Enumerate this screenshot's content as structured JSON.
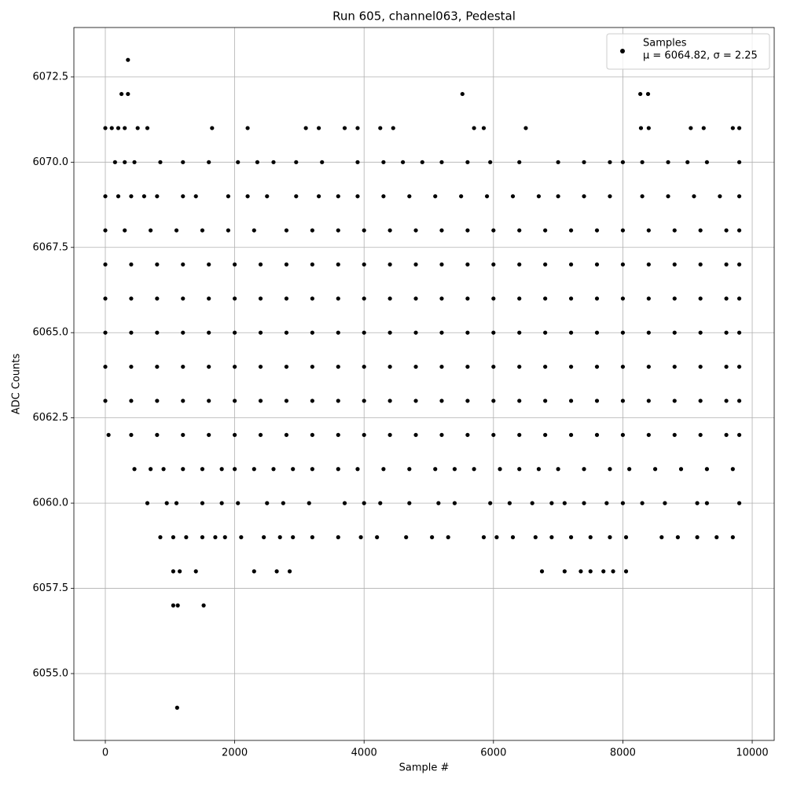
{
  "chart_data": {
    "type": "scatter",
    "title": "Run 605, channel063, Pedestal",
    "x_label": "Sample #",
    "y_label": "ADC Counts",
    "legend_position": "upper right",
    "legend_note": "μ = 6064.82, σ = 2.25",
    "grid": true,
    "xlim": [
      -486,
      10340
    ],
    "ylim": [
      6053.04,
      6073.95
    ],
    "xticks": [
      0,
      2000,
      4000,
      6000,
      8000,
      10000
    ],
    "yticks": [
      {
        "value": 6055,
        "label": "6055.0"
      },
      6057.5,
      {
        "value": 6060,
        "label": "6060.0"
      },
      6062.5,
      {
        "value": 6065,
        "label": "6065.0"
      },
      6067.5,
      {
        "value": 6070,
        "label": "6070.0"
      },
      6072.5
    ],
    "series": [
      {
        "name": "Samples",
        "color": "#000000",
        "x": [
          350,
          250,
          350,
          5520,
          8270,
          8390,
          0,
          100,
          200,
          300,
          500,
          650,
          1650,
          2200,
          3100,
          3300,
          3700,
          3900,
          4250,
          4450,
          5700,
          5850,
          6500,
          9050,
          9250,
          9700,
          9800,
          8280,
          8400,
          150,
          300,
          450,
          850,
          1200,
          1600,
          2050,
          2350,
          2600,
          2950,
          3350,
          3900,
          4300,
          4600,
          4900,
          5200,
          5600,
          5950,
          6400,
          7000,
          7400,
          7800,
          8000,
          8300,
          8700,
          9000,
          9300,
          9800,
          0,
          200,
          400,
          600,
          800,
          1200,
          1400,
          1900,
          2200,
          2500,
          2950,
          3300,
          3600,
          3900,
          4300,
          4700,
          5100,
          5500,
          5900,
          6300,
          6700,
          7000,
          7400,
          7800,
          8300,
          8700,
          9100,
          9500,
          9800,
          0,
          300,
          700,
          1100,
          1500,
          1900,
          2300,
          2800,
          3200,
          3600,
          4000,
          4400,
          4800,
          5200,
          5600,
          6000,
          6400,
          6800,
          7200,
          7600,
          8000,
          8400,
          8800,
          9200,
          9600,
          9800,
          0,
          400,
          800,
          1200,
          1600,
          2000,
          2400,
          2800,
          3200,
          3600,
          4000,
          4400,
          4800,
          5200,
          5600,
          6000,
          6400,
          6800,
          7200,
          7600,
          8000,
          8400,
          8800,
          9200,
          9600,
          9800,
          0,
          400,
          800,
          1200,
          1600,
          2000,
          2400,
          2800,
          3200,
          3600,
          4000,
          4400,
          4800,
          5200,
          5600,
          6000,
          6400,
          6800,
          7200,
          7600,
          8000,
          8400,
          8800,
          9200,
          9600,
          9800,
          0,
          400,
          800,
          1200,
          1600,
          2000,
          2400,
          2800,
          3200,
          3600,
          4000,
          4400,
          4800,
          5200,
          5600,
          6000,
          6400,
          6800,
          7200,
          7600,
          8000,
          8400,
          8800,
          9200,
          9600,
          9800,
          0,
          400,
          800,
          1200,
          1600,
          2000,
          2400,
          2800,
          3200,
          3600,
          4000,
          4400,
          4800,
          5200,
          5600,
          6000,
          6400,
          6800,
          7200,
          7600,
          8000,
          8400,
          8800,
          9200,
          9600,
          9800,
          0,
          400,
          800,
          1200,
          1600,
          2000,
          2400,
          2800,
          3200,
          3600,
          4000,
          4400,
          4800,
          5200,
          5600,
          6000,
          6400,
          6800,
          7200,
          7600,
          8000,
          8400,
          8800,
          9200,
          9600,
          9800,
          50,
          400,
          800,
          1200,
          1600,
          2000,
          2400,
          2800,
          3200,
          3600,
          4000,
          4400,
          4800,
          5200,
          5600,
          6000,
          6400,
          6800,
          7200,
          7600,
          8000,
          8400,
          8800,
          9200,
          9600,
          9800,
          450,
          700,
          900,
          1200,
          1500,
          1800,
          2000,
          2300,
          2600,
          2900,
          3200,
          3600,
          3900,
          4300,
          4700,
          5100,
          5400,
          5700,
          6100,
          6400,
          6700,
          7000,
          7400,
          7800,
          8100,
          8500,
          8900,
          9300,
          9700,
          650,
          950,
          1100,
          1500,
          1800,
          2050,
          2500,
          2750,
          3150,
          3700,
          4000,
          4250,
          4700,
          5150,
          5400,
          5950,
          6250,
          6600,
          6900,
          7100,
          7400,
          7750,
          8000,
          8300,
          8650,
          9150,
          9300,
          9800,
          850,
          1050,
          1250,
          1500,
          1700,
          1850,
          2100,
          2450,
          2700,
          2900,
          3200,
          3600,
          3950,
          4200,
          4650,
          5050,
          5300,
          5850,
          6050,
          6300,
          6650,
          6900,
          7200,
          7500,
          7800,
          8050,
          8600,
          8850,
          9150,
          9450,
          9700,
          1050,
          1150,
          1400,
          2300,
          2650,
          2850,
          6750,
          7100,
          7350,
          7500,
          7700,
          7850,
          8050,
          1050,
          1120,
          1520,
          1110
        ],
        "values": [
          6073,
          6072,
          6072,
          6072,
          6072,
          6072,
          6071,
          6071,
          6071,
          6071,
          6071,
          6071,
          6071,
          6071,
          6071,
          6071,
          6071,
          6071,
          6071,
          6071,
          6071,
          6071,
          6071,
          6071,
          6071,
          6071,
          6071,
          6071,
          6071,
          6070,
          6070,
          6070,
          6070,
          6070,
          6070,
          6070,
          6070,
          6070,
          6070,
          6070,
          6070,
          6070,
          6070,
          6070,
          6070,
          6070,
          6070,
          6070,
          6070,
          6070,
          6070,
          6070,
          6070,
          6070,
          6070,
          6070,
          6070,
          6069,
          6069,
          6069,
          6069,
          6069,
          6069,
          6069,
          6069,
          6069,
          6069,
          6069,
          6069,
          6069,
          6069,
          6069,
          6069,
          6069,
          6069,
          6069,
          6069,
          6069,
          6069,
          6069,
          6069,
          6069,
          6069,
          6069,
          6069,
          6069,
          6068,
          6068,
          6068,
          6068,
          6068,
          6068,
          6068,
          6068,
          6068,
          6068,
          6068,
          6068,
          6068,
          6068,
          6068,
          6068,
          6068,
          6068,
          6068,
          6068,
          6068,
          6068,
          6068,
          6068,
          6068,
          6068,
          6067,
          6067,
          6067,
          6067,
          6067,
          6067,
          6067,
          6067,
          6067,
          6067,
          6067,
          6067,
          6067,
          6067,
          6067,
          6067,
          6067,
          6067,
          6067,
          6067,
          6067,
          6067,
          6067,
          6067,
          6067,
          6067,
          6066,
          6066,
          6066,
          6066,
          6066,
          6066,
          6066,
          6066,
          6066,
          6066,
          6066,
          6066,
          6066,
          6066,
          6066,
          6066,
          6066,
          6066,
          6066,
          6066,
          6066,
          6066,
          6066,
          6066,
          6066,
          6066,
          6065,
          6065,
          6065,
          6065,
          6065,
          6065,
          6065,
          6065,
          6065,
          6065,
          6065,
          6065,
          6065,
          6065,
          6065,
          6065,
          6065,
          6065,
          6065,
          6065,
          6065,
          6065,
          6065,
          6065,
          6065,
          6065,
          6064,
          6064,
          6064,
          6064,
          6064,
          6064,
          6064,
          6064,
          6064,
          6064,
          6064,
          6064,
          6064,
          6064,
          6064,
          6064,
          6064,
          6064,
          6064,
          6064,
          6064,
          6064,
          6064,
          6064,
          6064,
          6064,
          6063,
          6063,
          6063,
          6063,
          6063,
          6063,
          6063,
          6063,
          6063,
          6063,
          6063,
          6063,
          6063,
          6063,
          6063,
          6063,
          6063,
          6063,
          6063,
          6063,
          6063,
          6063,
          6063,
          6063,
          6063,
          6063,
          6062,
          6062,
          6062,
          6062,
          6062,
          6062,
          6062,
          6062,
          6062,
          6062,
          6062,
          6062,
          6062,
          6062,
          6062,
          6062,
          6062,
          6062,
          6062,
          6062,
          6062,
          6062,
          6062,
          6062,
          6062,
          6062,
          6061,
          6061,
          6061,
          6061,
          6061,
          6061,
          6061,
          6061,
          6061,
          6061,
          6061,
          6061,
          6061,
          6061,
          6061,
          6061,
          6061,
          6061,
          6061,
          6061,
          6061,
          6061,
          6061,
          6061,
          6061,
          6061,
          6061,
          6061,
          6061,
          6060,
          6060,
          6060,
          6060,
          6060,
          6060,
          6060,
          6060,
          6060,
          6060,
          6060,
          6060,
          6060,
          6060,
          6060,
          6060,
          6060,
          6060,
          6060,
          6060,
          6060,
          6060,
          6060,
          6060,
          6060,
          6060,
          6060,
          6060,
          6059,
          6059,
          6059,
          6059,
          6059,
          6059,
          6059,
          6059,
          6059,
          6059,
          6059,
          6059,
          6059,
          6059,
          6059,
          6059,
          6059,
          6059,
          6059,
          6059,
          6059,
          6059,
          6059,
          6059,
          6059,
          6059,
          6059,
          6059,
          6059,
          6059,
          6059,
          6058,
          6058,
          6058,
          6058,
          6058,
          6058,
          6058,
          6058,
          6058,
          6058,
          6058,
          6058,
          6058,
          6057,
          6057,
          6057,
          6054
        ]
      }
    ]
  }
}
